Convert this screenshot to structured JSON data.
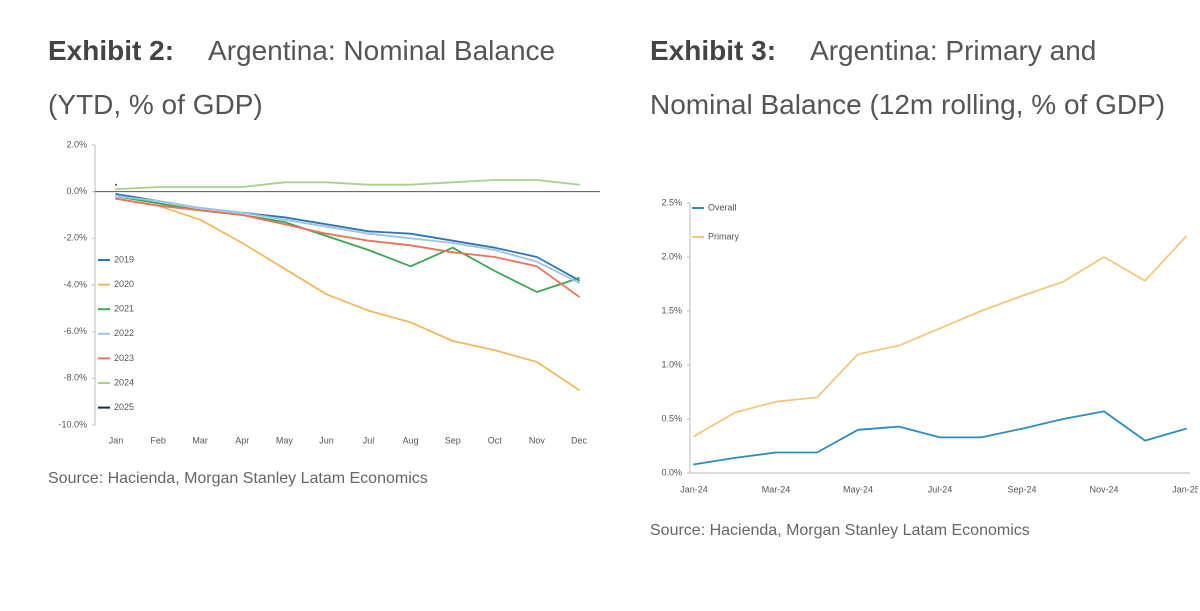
{
  "chart_data": [
    {
      "type": "line",
      "exhibit": "Exhibit 2:",
      "title": "Argentina: Nominal Balance (YTD, % of GDP)",
      "source": "Source: Hacienda, Morgan Stanley Latam Economics",
      "categories": [
        "Jan",
        "Feb",
        "Mar",
        "Apr",
        "May",
        "Jun",
        "Jul",
        "Aug",
        "Sep",
        "Oct",
        "Nov",
        "Dec"
      ],
      "ylim": [
        -10,
        2
      ],
      "yticks": [
        {
          "value": 2,
          "label": "2.0%"
        },
        {
          "value": 0,
          "label": "0.0%"
        },
        {
          "value": -2,
          "label": "-2.0%"
        },
        {
          "value": -4,
          "label": "-4.0%"
        },
        {
          "value": -6,
          "label": "-6.0%"
        },
        {
          "value": -8,
          "label": "-8.0%"
        },
        {
          "value": -10,
          "label": "-10.0%"
        }
      ],
      "legend": "left",
      "series": [
        {
          "name": "2019",
          "color": "#2e75b6",
          "values": [
            -0.1,
            -0.4,
            -0.7,
            -0.9,
            -1.1,
            -1.4,
            -1.7,
            -1.8,
            -2.1,
            -2.4,
            -2.8,
            -3.8
          ]
        },
        {
          "name": "2020",
          "color": "#f4b860",
          "values": [
            -0.3,
            -0.6,
            -1.2,
            -2.2,
            -3.3,
            -4.4,
            -5.1,
            -5.6,
            -6.4,
            -6.8,
            -7.3,
            -8.5
          ]
        },
        {
          "name": "2021",
          "color": "#3aa655",
          "values": [
            -0.2,
            -0.5,
            -0.8,
            -1.0,
            -1.3,
            -1.9,
            -2.5,
            -3.2,
            -2.4,
            -3.4,
            -4.3,
            -3.7
          ]
        },
        {
          "name": "2022",
          "color": "#9dc3e6",
          "values": [
            -0.2,
            -0.4,
            -0.7,
            -0.9,
            -1.2,
            -1.5,
            -1.8,
            -2.0,
            -2.2,
            -2.5,
            -3.0,
            -3.9
          ]
        },
        {
          "name": "2023",
          "color": "#e8735a",
          "values": [
            -0.3,
            -0.6,
            -0.8,
            -1.0,
            -1.4,
            -1.8,
            -2.1,
            -2.3,
            -2.6,
            -2.8,
            -3.2,
            -4.5
          ]
        },
        {
          "name": "2024",
          "color": "#a9d18e",
          "values": [
            0.1,
            0.2,
            0.2,
            0.2,
            0.4,
            0.4,
            0.3,
            0.3,
            0.4,
            0.5,
            0.5,
            0.3
          ]
        },
        {
          "name": "2025",
          "color": "#1f2a44",
          "values": [
            0.3,
            null,
            null,
            null,
            null,
            null,
            null,
            null,
            null,
            null,
            null,
            null
          ]
        }
      ]
    },
    {
      "type": "line",
      "exhibit": "Exhibit 3:",
      "title": "Argentina: Primary and Nominal Balance (12m rolling, % of GDP)",
      "source": "Source: Hacienda, Morgan Stanley Latam Economics",
      "categories": [
        "Jan-24",
        null,
        "Mar-24",
        null,
        "May-24",
        null,
        "Jul-24",
        null,
        "Sep-24",
        null,
        "Nov-24",
        null,
        "Jan-25"
      ],
      "ylim": [
        0,
        2.5
      ],
      "yticks": [
        {
          "value": 0,
          "label": "0.0%"
        },
        {
          "value": 0.5,
          "label": "0.5%"
        },
        {
          "value": 1,
          "label": "1.0%"
        },
        {
          "value": 1.5,
          "label": "1.5%"
        },
        {
          "value": 2,
          "label": "2.0%"
        },
        {
          "value": 2.5,
          "label": "2.5%"
        }
      ],
      "legend": "upper left",
      "series": [
        {
          "name": "Overall",
          "color": "#2e8bc0",
          "values": [
            0.08,
            0.14,
            0.19,
            0.19,
            0.4,
            0.43,
            0.33,
            0.33,
            0.41,
            0.5,
            0.57,
            0.3,
            0.41
          ]
        },
        {
          "name": "Primary",
          "color": "#f5c77e",
          "values": [
            0.34,
            0.56,
            0.66,
            0.7,
            1.1,
            1.18,
            1.34,
            1.5,
            1.64,
            1.77,
            2.0,
            1.78,
            2.19
          ]
        }
      ]
    }
  ]
}
